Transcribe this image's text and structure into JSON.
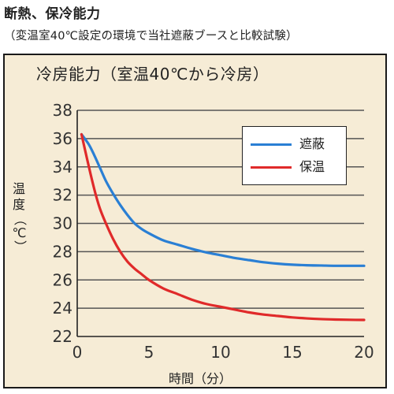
{
  "heading": "断熱、保冷能力",
  "subheading": "（変温室40℃設定の環境で当社遮蔽ブースと比較試験）",
  "chart_data": {
    "type": "line",
    "title": "冷房能力（室温40℃から冷房）",
    "xlabel": "時間（分）",
    "ylabel_chars": [
      "温",
      "度"
    ],
    "ylabel_unit": "（℃）",
    "xlim": [
      0,
      20
    ],
    "ylim": [
      22,
      38
    ],
    "x_ticks": [
      0,
      5,
      10,
      15,
      20
    ],
    "y_ticks": [
      22,
      24,
      26,
      28,
      30,
      32,
      34,
      36,
      38
    ],
    "grid": "horizontal",
    "legend_position": "top-right",
    "series": [
      {
        "name": "遮蔽",
        "color": "#2a7fd4",
        "x": [
          0.3,
          0.8,
          1.2,
          1.6,
          2.0,
          2.5,
          3.0,
          3.5,
          4.0,
          4.5,
          5.0,
          6.0,
          7.0,
          8.0,
          9.0,
          10.0,
          11.0,
          12.0,
          13.0,
          14.0,
          15.0,
          16.0,
          17.0,
          18.0,
          19.0,
          20.0
        ],
        "y": [
          36.3,
          35.6,
          34.8,
          33.9,
          33.0,
          32.1,
          31.3,
          30.6,
          30.0,
          29.6,
          29.3,
          28.8,
          28.5,
          28.2,
          27.95,
          27.75,
          27.55,
          27.4,
          27.25,
          27.15,
          27.08,
          27.04,
          27.02,
          27.0,
          27.0,
          27.0
        ]
      },
      {
        "name": "保温",
        "color": "#e02a2a",
        "x": [
          0.3,
          0.7,
          1.0,
          1.3,
          1.6,
          2.0,
          2.5,
          3.0,
          3.5,
          4.0,
          4.5,
          5.0,
          6.0,
          7.0,
          8.0,
          9.0,
          10.0,
          11.0,
          12.0,
          13.0,
          14.0,
          15.0,
          16.0,
          17.0,
          18.0,
          19.0,
          20.0
        ],
        "y": [
          36.3,
          34.5,
          33.2,
          32.0,
          31.0,
          30.0,
          28.9,
          28.0,
          27.3,
          26.8,
          26.4,
          26.0,
          25.4,
          25.0,
          24.6,
          24.3,
          24.1,
          23.9,
          23.7,
          23.55,
          23.45,
          23.35,
          23.28,
          23.23,
          23.2,
          23.18,
          23.17
        ]
      }
    ]
  }
}
